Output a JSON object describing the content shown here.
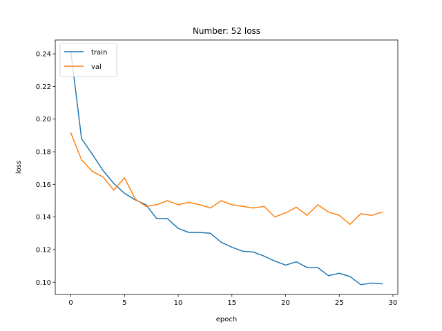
{
  "chart_data": {
    "type": "line",
    "title": "Number: 52 loss",
    "xlabel": "epoch",
    "ylabel": "loss",
    "xlim": [
      -1.45,
      30.45
    ],
    "ylim": [
      0.0925,
      0.2485
    ],
    "xticks": [
      0,
      5,
      10,
      15,
      20,
      25,
      30
    ],
    "yticks": [
      0.1,
      0.12,
      0.14,
      0.16,
      0.18,
      0.2,
      0.22,
      0.24
    ],
    "ytick_labels": [
      "0.10",
      "0.12",
      "0.14",
      "0.16",
      "0.18",
      "0.20",
      "0.22",
      "0.24"
    ],
    "grid": false,
    "legend_position": "upper-left",
    "x": [
      0,
      1,
      2,
      3,
      4,
      5,
      6,
      7,
      8,
      9,
      10,
      11,
      12,
      13,
      14,
      15,
      16,
      17,
      18,
      19,
      20,
      21,
      22,
      23,
      24,
      25,
      26,
      27,
      28,
      29
    ],
    "series": [
      {
        "name": "train",
        "color": "#1f77b4",
        "values": [
          0.2415,
          0.188,
          0.1785,
          0.1685,
          0.1605,
          0.1545,
          0.1505,
          0.1475,
          0.139,
          0.139,
          0.133,
          0.1305,
          0.1305,
          0.13,
          0.1245,
          0.1215,
          0.119,
          0.1185,
          0.116,
          0.113,
          0.1105,
          0.1125,
          0.109,
          0.109,
          0.104,
          0.1055,
          0.1035,
          0.0985,
          0.0995,
          0.099
        ]
      },
      {
        "name": "val",
        "color": "#ff7f0e",
        "values": [
          0.1915,
          0.175,
          0.168,
          0.1645,
          0.1565,
          0.164,
          0.151,
          0.1465,
          0.1475,
          0.15,
          0.1475,
          0.149,
          0.1475,
          0.1455,
          0.15,
          0.1475,
          0.1465,
          0.1455,
          0.1465,
          0.14,
          0.1425,
          0.146,
          0.141,
          0.1475,
          0.143,
          0.141,
          0.1355,
          0.142,
          0.141,
          0.143
        ]
      }
    ]
  }
}
